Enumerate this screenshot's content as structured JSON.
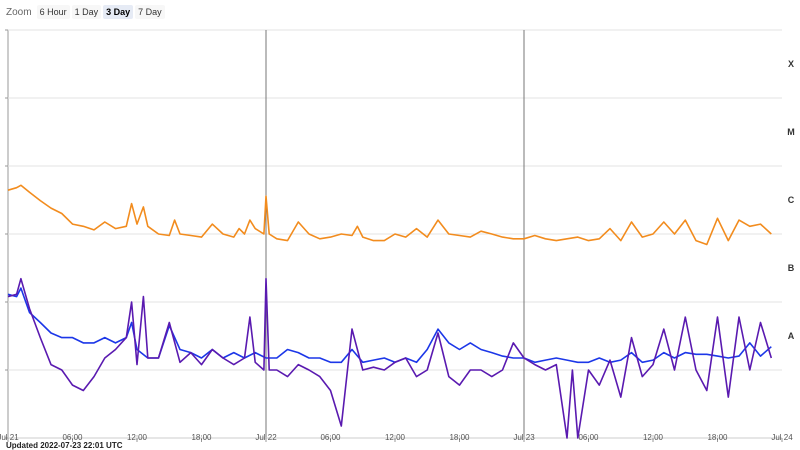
{
  "zoom": {
    "label": "Zoom",
    "buttons": [
      {
        "label": "6 Hour",
        "active": false
      },
      {
        "label": "1 Day",
        "active": false
      },
      {
        "label": "3 Day",
        "active": true
      },
      {
        "label": "7 Day",
        "active": false
      }
    ]
  },
  "updated": "Updated 2022-07-23 22:01 UTC",
  "chart_data": {
    "type": "line",
    "x_unit": "hours since Jul 21 00:00 UTC",
    "xlim": [
      0,
      72
    ],
    "x_ticks": [
      {
        "x": 0,
        "label": "Jul 21"
      },
      {
        "x": 6,
        "label": "06:00"
      },
      {
        "x": 12,
        "label": "12:00"
      },
      {
        "x": 18,
        "label": "18:00"
      },
      {
        "x": 24,
        "label": "Jul 22"
      },
      {
        "x": 30,
        "label": "06:00"
      },
      {
        "x": 36,
        "label": "12:00"
      },
      {
        "x": 42,
        "label": "18:00"
      },
      {
        "x": 48,
        "label": "Jul 23"
      },
      {
        "x": 54,
        "label": "06:00"
      },
      {
        "x": 60,
        "label": "12:00"
      },
      {
        "x": 66,
        "label": "18:00"
      },
      {
        "x": 72,
        "label": "Jul 24"
      }
    ],
    "day_lines": [
      24,
      48
    ],
    "y_scale": "log",
    "ylim": [
      1e-09,
      0.001
    ],
    "y_gridlines": [
      1e-09,
      1e-08,
      1e-07,
      1e-06,
      1e-05,
      0.0001,
      0.001
    ],
    "flare_classes": [
      {
        "label": "A",
        "level": 1e-08
      },
      {
        "label": "B",
        "level": 1e-07
      },
      {
        "label": "C",
        "level": 1e-06
      },
      {
        "label": "M",
        "level": 1e-05
      },
      {
        "label": "X",
        "level": 0.0001
      }
    ],
    "series": [
      {
        "color": "#f28c1e",
        "points": [
          [
            0,
            4.4e-06
          ],
          [
            0.8,
            4.8e-06
          ],
          [
            1.2,
            5.2e-06
          ],
          [
            2,
            4.1e-06
          ],
          [
            3,
            3.1e-06
          ],
          [
            4,
            2.4e-06
          ],
          [
            5,
            2e-06
          ],
          [
            6,
            1.4e-06
          ],
          [
            7,
            1.3e-06
          ],
          [
            8,
            1.15e-06
          ],
          [
            9,
            1.5e-06
          ],
          [
            10,
            1.2e-06
          ],
          [
            11,
            1.3e-06
          ],
          [
            11.5,
            2.8e-06
          ],
          [
            12,
            1.4e-06
          ],
          [
            12.6,
            2.5e-06
          ],
          [
            13,
            1.3e-06
          ],
          [
            14,
            1e-06
          ],
          [
            15,
            9.5e-07
          ],
          [
            15.5,
            1.6e-06
          ],
          [
            16,
            1e-06
          ],
          [
            17,
            9.5e-07
          ],
          [
            18,
            9e-07
          ],
          [
            19,
            1.4e-06
          ],
          [
            20,
            1e-06
          ],
          [
            21,
            9e-07
          ],
          [
            21.5,
            1.2e-06
          ],
          [
            22,
            1e-06
          ],
          [
            22.5,
            1.6e-06
          ],
          [
            23,
            1.2e-06
          ],
          [
            23.8,
            1e-06
          ],
          [
            24,
            3.6e-06
          ],
          [
            24.3,
            1e-06
          ],
          [
            25,
            8.5e-07
          ],
          [
            26,
            8e-07
          ],
          [
            27,
            1.5e-06
          ],
          [
            28,
            1e-06
          ],
          [
            29,
            8.5e-07
          ],
          [
            30,
            9e-07
          ],
          [
            31,
            1e-06
          ],
          [
            32,
            9.5e-07
          ],
          [
            32.5,
            1.3e-06
          ],
          [
            33,
            9e-07
          ],
          [
            34,
            8e-07
          ],
          [
            35,
            8e-07
          ],
          [
            36,
            1e-06
          ],
          [
            37,
            9e-07
          ],
          [
            38,
            1.2e-06
          ],
          [
            39,
            9e-07
          ],
          [
            40,
            1.6e-06
          ],
          [
            41,
            1e-06
          ],
          [
            42,
            9.5e-07
          ],
          [
            43,
            9e-07
          ],
          [
            44,
            1.1e-06
          ],
          [
            45,
            1e-06
          ],
          [
            46,
            9e-07
          ],
          [
            47,
            8.5e-07
          ],
          [
            48,
            8.5e-07
          ],
          [
            49,
            9.5e-07
          ],
          [
            50,
            8.5e-07
          ],
          [
            51,
            8e-07
          ],
          [
            52,
            8.5e-07
          ],
          [
            53,
            9e-07
          ],
          [
            54,
            8e-07
          ],
          [
            55,
            8.5e-07
          ],
          [
            56,
            1.2e-06
          ],
          [
            57,
            8e-07
          ],
          [
            58,
            1.5e-06
          ],
          [
            59,
            9e-07
          ],
          [
            60,
            1e-06
          ],
          [
            61,
            1.5e-06
          ],
          [
            62,
            1e-06
          ],
          [
            63,
            1.6e-06
          ],
          [
            64,
            8e-07
          ],
          [
            65,
            7e-07
          ],
          [
            66,
            1.7e-06
          ],
          [
            67,
            8e-07
          ],
          [
            68,
            1.6e-06
          ],
          [
            69,
            1.3e-06
          ],
          [
            70,
            1.4e-06
          ],
          [
            71,
            1e-06
          ]
        ]
      },
      {
        "color": "#1c37e8",
        "points": [
          [
            0,
            1.3e-07
          ],
          [
            0.8,
            1.2e-07
          ],
          [
            1.2,
            1.6e-07
          ],
          [
            2,
            7e-08
          ],
          [
            3,
            5e-08
          ],
          [
            4,
            3.5e-08
          ],
          [
            5,
            3e-08
          ],
          [
            6,
            3e-08
          ],
          [
            7,
            2.5e-08
          ],
          [
            8,
            2.5e-08
          ],
          [
            9,
            3e-08
          ],
          [
            10,
            2.5e-08
          ],
          [
            11,
            3e-08
          ],
          [
            11.5,
            5e-08
          ],
          [
            12,
            2e-08
          ],
          [
            13,
            1.5e-08
          ],
          [
            14,
            1.5e-08
          ],
          [
            15,
            4.5e-08
          ],
          [
            16,
            2e-08
          ],
          [
            17,
            1.8e-08
          ],
          [
            18,
            1.5e-08
          ],
          [
            19,
            2e-08
          ],
          [
            20,
            1.5e-08
          ],
          [
            21,
            1.8e-08
          ],
          [
            22,
            1.5e-08
          ],
          [
            23,
            1.8e-08
          ],
          [
            24,
            1.5e-08
          ],
          [
            25,
            1.5e-08
          ],
          [
            26,
            2e-08
          ],
          [
            27,
            1.8e-08
          ],
          [
            28,
            1.5e-08
          ],
          [
            29,
            1.5e-08
          ],
          [
            30,
            1.3e-08
          ],
          [
            31,
            1.3e-08
          ],
          [
            32,
            2e-08
          ],
          [
            33,
            1.3e-08
          ],
          [
            34,
            1.4e-08
          ],
          [
            35,
            1.5e-08
          ],
          [
            36,
            1.3e-08
          ],
          [
            37,
            1.5e-08
          ],
          [
            38,
            1.3e-08
          ],
          [
            39,
            2e-08
          ],
          [
            40,
            4e-08
          ],
          [
            41,
            2.5e-08
          ],
          [
            42,
            2e-08
          ],
          [
            43,
            2.5e-08
          ],
          [
            44,
            2e-08
          ],
          [
            45,
            1.8e-08
          ],
          [
            46,
            1.6e-08
          ],
          [
            47,
            1.5e-08
          ],
          [
            48,
            1.5e-08
          ],
          [
            49,
            1.3e-08
          ],
          [
            50,
            1.4e-08
          ],
          [
            51,
            1.5e-08
          ],
          [
            52,
            1.4e-08
          ],
          [
            53,
            1.3e-08
          ],
          [
            54,
            1.3e-08
          ],
          [
            55,
            1.5e-08
          ],
          [
            56,
            1.3e-08
          ],
          [
            57,
            1.4e-08
          ],
          [
            58,
            1.8e-08
          ],
          [
            59,
            1.3e-08
          ],
          [
            60,
            1.4e-08
          ],
          [
            61,
            1.8e-08
          ],
          [
            62,
            1.5e-08
          ],
          [
            63,
            1.8e-08
          ],
          [
            64,
            1.7e-08
          ],
          [
            65,
            1.7e-08
          ],
          [
            66,
            1.6e-08
          ],
          [
            67,
            1.5e-08
          ],
          [
            68,
            1.6e-08
          ],
          [
            69,
            2.5e-08
          ],
          [
            70,
            1.6e-08
          ],
          [
            71,
            2.2e-08
          ]
        ]
      },
      {
        "color": "#5a1ab0",
        "points": [
          [
            0,
            1.2e-07
          ],
          [
            0.8,
            1.3e-07
          ],
          [
            1.2,
            2.2e-07
          ],
          [
            2,
            8e-08
          ],
          [
            3,
            3e-08
          ],
          [
            4,
            1.2e-08
          ],
          [
            5,
            1e-08
          ],
          [
            6,
            6e-09
          ],
          [
            7,
            5e-09
          ],
          [
            8,
            8e-09
          ],
          [
            9,
            1.5e-08
          ],
          [
            10,
            2e-08
          ],
          [
            11,
            3e-08
          ],
          [
            11.5,
            1e-07
          ],
          [
            12,
            1.2e-08
          ],
          [
            12.6,
            1.2e-07
          ],
          [
            13,
            1.5e-08
          ],
          [
            14,
            1.5e-08
          ],
          [
            15,
            5e-08
          ],
          [
            16,
            1.3e-08
          ],
          [
            17,
            1.8e-08
          ],
          [
            18,
            1.2e-08
          ],
          [
            19,
            2e-08
          ],
          [
            20,
            1.5e-08
          ],
          [
            21,
            1.2e-08
          ],
          [
            22,
            1.5e-08
          ],
          [
            22.5,
            6e-08
          ],
          [
            23,
            1.3e-08
          ],
          [
            23.8,
            1e-08
          ],
          [
            24,
            2.2e-07
          ],
          [
            24.3,
            1e-08
          ],
          [
            25,
            1e-08
          ],
          [
            26,
            8e-09
          ],
          [
            27,
            1.2e-08
          ],
          [
            28,
            1e-08
          ],
          [
            29,
            8e-09
          ],
          [
            30,
            5e-09
          ],
          [
            31,
            1.5e-09
          ],
          [
            32,
            4e-08
          ],
          [
            33,
            1e-08
          ],
          [
            34,
            1.1e-08
          ],
          [
            35,
            1e-08
          ],
          [
            36,
            1.3e-08
          ],
          [
            37,
            1.5e-08
          ],
          [
            38,
            8e-09
          ],
          [
            39,
            1e-08
          ],
          [
            40,
            3.5e-08
          ],
          [
            41,
            8e-09
          ],
          [
            42,
            6e-09
          ],
          [
            43,
            1e-08
          ],
          [
            44,
            1e-08
          ],
          [
            45,
            8e-09
          ],
          [
            46,
            1e-08
          ],
          [
            47,
            2.5e-08
          ],
          [
            48,
            1.5e-08
          ],
          [
            49,
            1.2e-08
          ],
          [
            50,
            1e-08
          ],
          [
            51,
            1.2e-08
          ],
          [
            52,
            1e-09
          ],
          [
            52.5,
            1e-08
          ],
          [
            53,
            1e-09
          ],
          [
            54,
            1e-08
          ],
          [
            55,
            6e-09
          ],
          [
            56,
            1.4e-08
          ],
          [
            57,
            4e-09
          ],
          [
            58,
            3e-08
          ],
          [
            59,
            8e-09
          ],
          [
            60,
            1.2e-08
          ],
          [
            61,
            4e-08
          ],
          [
            62,
            1e-08
          ],
          [
            63,
            6e-08
          ],
          [
            64,
            1e-08
          ],
          [
            65,
            5e-09
          ],
          [
            66,
            6e-08
          ],
          [
            67,
            4e-09
          ],
          [
            68,
            6e-08
          ],
          [
            69,
            1e-08
          ],
          [
            70,
            5e-08
          ],
          [
            71,
            1.5e-08
          ]
        ]
      }
    ]
  }
}
